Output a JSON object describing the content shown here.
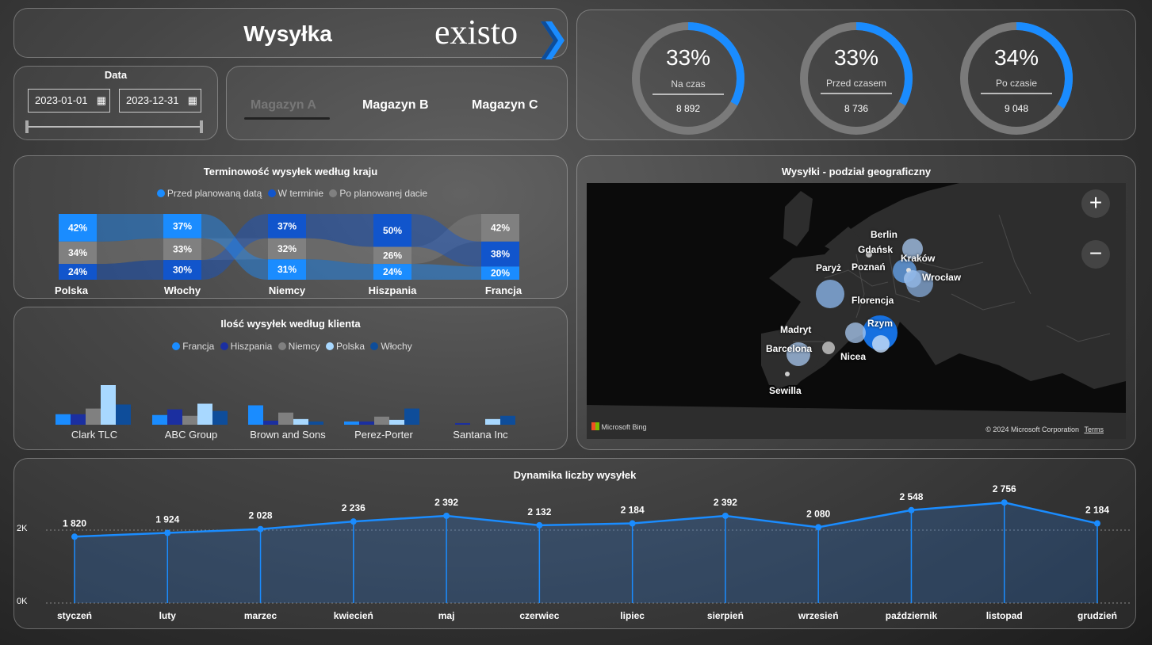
{
  "header": {
    "title": "Wysyłka",
    "logo": "existo"
  },
  "date_filter": {
    "title": "Data",
    "from": "2023-01-01",
    "to": "2023-12-31",
    "icon": "calendar-icon"
  },
  "warehouses": [
    "Magazyn A",
    "Magazyn B",
    "Magazyn C"
  ],
  "selected_warehouse": "Magazyn A",
  "kpis": [
    {
      "pct": "33%",
      "label": "Na czas",
      "value": "8 892",
      "fraction": 0.33
    },
    {
      "pct": "33%",
      "label": "Przed czasem",
      "value": "8 736",
      "fraction": 0.33
    },
    {
      "pct": "34%",
      "label": "Po czasie",
      "value": "9 048",
      "fraction": 0.34
    }
  ],
  "colors": {
    "accent": "#1a8cff",
    "dark_blue": "#1155cc",
    "navy": "#1b2fa0",
    "grey": "#808080",
    "light_blue": "#a8d8ff",
    "deep_blue": "#0e4d9a"
  },
  "country_chart": {
    "title": "Terminowość wysyłek według kraju",
    "legend": [
      "Przed planowaną datą",
      "W terminie",
      "Po planowanej dacie"
    ],
    "countries": [
      {
        "name": "Polska",
        "before": "42%",
        "late": "34%",
        "on_time": "24%",
        "order": [
          "before",
          "late",
          "on_time"
        ],
        "values": [
          42,
          34,
          24
        ]
      },
      {
        "name": "Włochy",
        "before": "37%",
        "late": "33%",
        "on_time": "30%",
        "order": [
          "before",
          "late",
          "on_time"
        ],
        "values": [
          37,
          33,
          30
        ]
      },
      {
        "name": "Niemcy",
        "on_time": "37%",
        "late": "32%",
        "before": "31%",
        "order": [
          "on_time",
          "late",
          "before"
        ],
        "values": [
          37,
          32,
          31
        ]
      },
      {
        "name": "Hiszpania",
        "on_time": "50%",
        "late": "26%",
        "before": "24%",
        "order": [
          "on_time",
          "late",
          "before"
        ],
        "values": [
          50,
          26,
          24
        ]
      },
      {
        "name": "Francja",
        "late": "42%",
        "on_time": "38%",
        "before": "20%",
        "order": [
          "late",
          "on_time",
          "before"
        ],
        "values": [
          42,
          38,
          20
        ]
      }
    ]
  },
  "chart_data": [
    {
      "type": "bar",
      "title": "Ilość wysyłek według klienta",
      "categories": [
        "Clark TLC",
        "ABC Group",
        "Brown and Sons",
        "Perez-Porter",
        "Santana Inc"
      ],
      "series": [
        {
          "name": "Francja",
          "color": "#1a8cff",
          "values": [
            13,
            12,
            24,
            4,
            0
          ]
        },
        {
          "name": "Hiszpania",
          "color": "#1b2fa0",
          "values": [
            13,
            19,
            5,
            4,
            2
          ]
        },
        {
          "name": "Niemcy",
          "color": "#808080",
          "values": [
            20,
            11,
            15,
            10,
            0
          ]
        },
        {
          "name": "Polska",
          "color": "#a8d8ff",
          "values": [
            49,
            26,
            7,
            6,
            7
          ]
        },
        {
          "name": "Włochy",
          "color": "#0e4d9a",
          "values": [
            25,
            17,
            4,
            20,
            11
          ]
        }
      ]
    },
    {
      "type": "area",
      "title": "Dynamika liczby wysyłek",
      "categories": [
        "styczeń",
        "luty",
        "marzec",
        "kwiecień",
        "maj",
        "czerwiec",
        "lipiec",
        "sierpień",
        "wrzesień",
        "październik",
        "listopad",
        "grudzień"
      ],
      "values": [
        1820,
        1924,
        2028,
        2236,
        2392,
        2132,
        2184,
        2392,
        2080,
        2548,
        2756,
        2184
      ],
      "labels": [
        "1 820",
        "1 924",
        "2 028",
        "2 236",
        "2 392",
        "2 132",
        "2 184",
        "2 392",
        "2 080",
        "2 548",
        "2 756",
        "2 184"
      ],
      "yticks": [
        "0K",
        "2K"
      ],
      "ylim": [
        0,
        2900
      ]
    }
  ],
  "map": {
    "title": "Wysyłki - podział geograficzny",
    "attribution": "Microsoft Bing",
    "copyright": "© 2024 Microsoft Corporation",
    "terms": "Terms",
    "zoom_in": "+",
    "zoom_out": "−",
    "cities": [
      "Berlin",
      "Gdańsk",
      "Kraków",
      "Poznań",
      "Paryż",
      "Wrocław",
      "Florencja",
      "Rzym",
      "Madryt",
      "Barcelona",
      "Nicea",
      "Sewilla"
    ]
  }
}
